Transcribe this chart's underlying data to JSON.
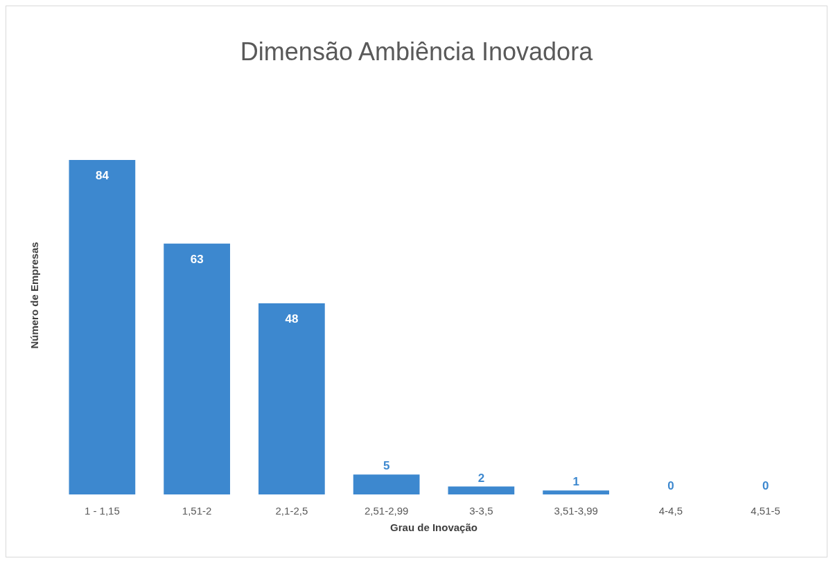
{
  "chart_data": {
    "type": "bar",
    "title": "Dimensão Ambiência Inovadora",
    "xlabel": "Grau de Inovação",
    "ylabel": "Número de Empresas",
    "categories": [
      "1 - 1,15",
      "1,51-2",
      "2,1-2,5",
      "2,51-2,99",
      "3-3,5",
      "3,51-3,99",
      "4-4,5",
      "4,51-5"
    ],
    "values": [
      84,
      63,
      48,
      5,
      2,
      1,
      0,
      0
    ],
    "color": "#3d88cf",
    "data_labels": true,
    "grid": false
  }
}
